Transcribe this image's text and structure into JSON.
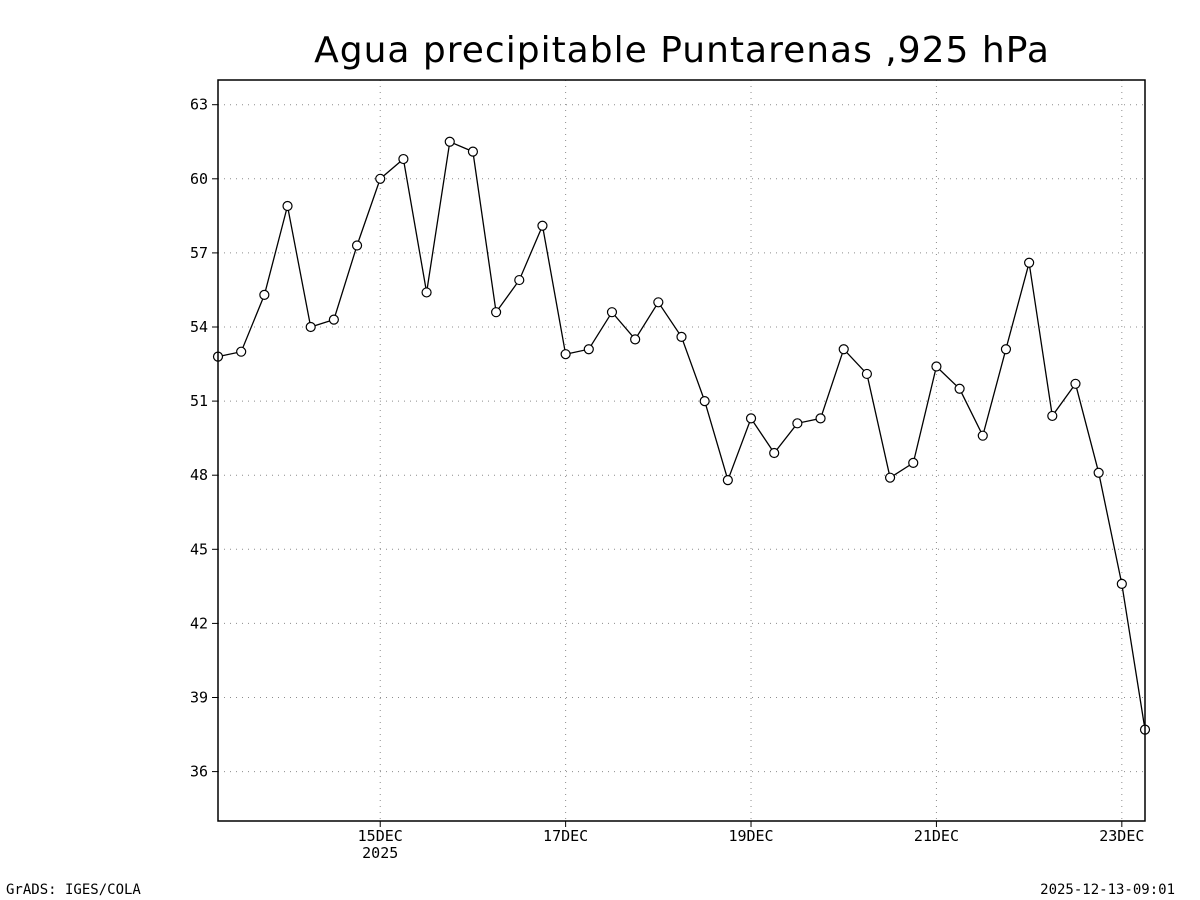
{
  "chart_data": {
    "type": "line",
    "title": "Agua precipitable Puntarenas ,925 hPa",
    "xlabel": "",
    "ylabel": "",
    "ylim": [
      34,
      64
    ],
    "yticks": [
      36,
      39,
      42,
      45,
      48,
      51,
      54,
      57,
      60,
      63
    ],
    "ytick_labels": [
      "36",
      "39",
      "42",
      "45",
      "48",
      "51",
      "54",
      "57",
      "60",
      "63"
    ],
    "xlim": [
      "2025-12-13T06:00",
      "2025-12-23T06:00"
    ],
    "xticks": [
      {
        "x": "2025-12-15T00:00",
        "label": "15DEC",
        "sublabel": "2025"
      },
      {
        "x": "2025-12-17T00:00",
        "label": "17DEC",
        "sublabel": ""
      },
      {
        "x": "2025-12-19T00:00",
        "label": "19DEC",
        "sublabel": ""
      },
      {
        "x": "2025-12-21T00:00",
        "label": "21DEC",
        "sublabel": ""
      },
      {
        "x": "2025-12-23T00:00",
        "label": "23DEC",
        "sublabel": ""
      }
    ],
    "grid": true,
    "marker": "open-circle",
    "series": [
      {
        "x": [
          "2025-12-13T06:00",
          "2025-12-13T12:00",
          "2025-12-13T18:00",
          "2025-12-14T00:00",
          "2025-12-14T06:00",
          "2025-12-14T12:00",
          "2025-12-14T18:00",
          "2025-12-15T00:00",
          "2025-12-15T06:00",
          "2025-12-15T12:00",
          "2025-12-15T18:00",
          "2025-12-16T00:00",
          "2025-12-16T06:00",
          "2025-12-16T12:00",
          "2025-12-16T18:00",
          "2025-12-17T00:00",
          "2025-12-17T06:00",
          "2025-12-17T12:00",
          "2025-12-17T18:00",
          "2025-12-18T00:00",
          "2025-12-18T06:00",
          "2025-12-18T12:00",
          "2025-12-18T18:00",
          "2025-12-19T00:00",
          "2025-12-19T06:00",
          "2025-12-19T12:00",
          "2025-12-19T18:00",
          "2025-12-20T00:00",
          "2025-12-20T06:00",
          "2025-12-20T12:00",
          "2025-12-20T18:00",
          "2025-12-21T00:00",
          "2025-12-21T06:00",
          "2025-12-21T12:00",
          "2025-12-21T18:00",
          "2025-12-22T00:00",
          "2025-12-22T06:00",
          "2025-12-22T12:00",
          "2025-12-22T18:00",
          "2025-12-23T00:00",
          "2025-12-23T06:00"
        ],
        "values": [
          52.8,
          53.0,
          55.3,
          58.9,
          54.0,
          54.3,
          57.3,
          60.0,
          60.8,
          55.4,
          61.5,
          61.1,
          54.6,
          55.9,
          58.1,
          52.9,
          53.1,
          54.6,
          53.5,
          55.0,
          53.6,
          51.0,
          47.8,
          50.3,
          48.9,
          50.1,
          50.3,
          53.1,
          52.1,
          47.9,
          48.5,
          52.4,
          51.5,
          49.6,
          53.1,
          56.6,
          50.4,
          51.7,
          48.1,
          43.6,
          37.7
        ]
      }
    ]
  },
  "footer": {
    "left": "GrADS: IGES/COLA",
    "right": "2025-12-13-09:01"
  }
}
